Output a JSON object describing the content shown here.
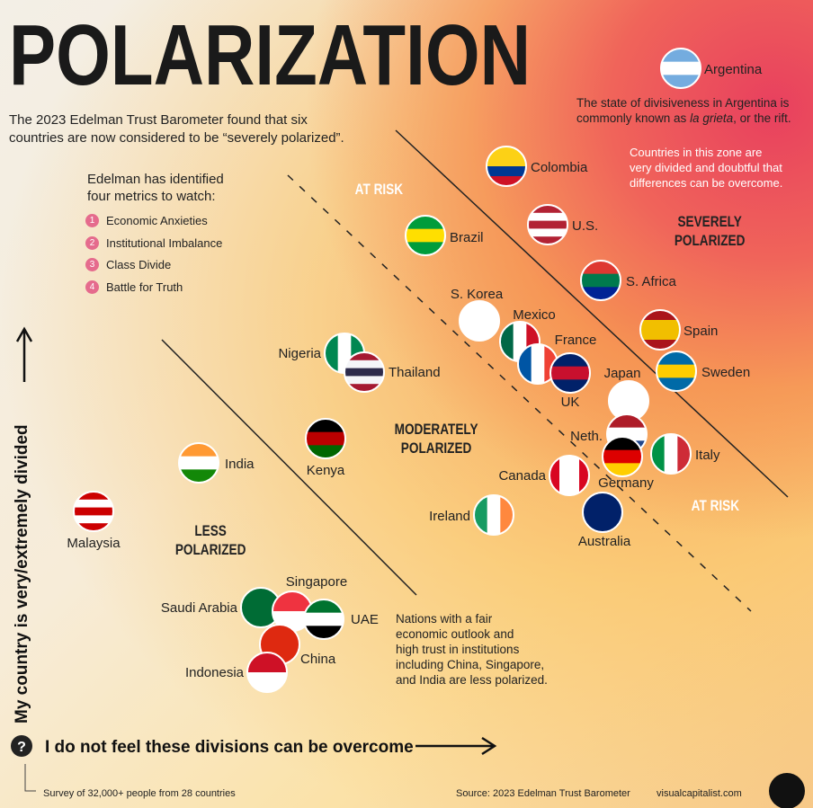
{
  "header": {
    "title": "POLARIZATION",
    "intro": [
      "The 2023 Edelman Trust Barometer found that six",
      "countries are now considered to be “severely polarized”."
    ]
  },
  "metrics": {
    "heading": [
      "Edelman has identified",
      "four metrics to watch:"
    ],
    "items": [
      {
        "number": "1",
        "label": "Economic Anxieties"
      },
      {
        "number": "2",
        "label": "Institutional Imbalance"
      },
      {
        "number": "3",
        "label": "Class Divide"
      },
      {
        "number": "4",
        "label": "Battle for Truth"
      }
    ]
  },
  "zones": {
    "at_risk_top": "AT RISK",
    "severely": [
      "SEVERELY",
      "POLARIZED"
    ],
    "moderately": [
      "MODERATELY",
      "POLARIZED"
    ],
    "less": [
      "LESS",
      "POLARIZED"
    ],
    "at_risk_bottom": "AT RISK"
  },
  "notes": {
    "argentina": [
      "The state of divisiveness in Argentina is",
      "commonly known as ",
      "la grieta",
      ", or the rift."
    ],
    "severe_zone": [
      "Countries in this zone are",
      "very divided and doubtful that",
      "differences can be overcome."
    ],
    "less_zone": [
      "Nations with a fair",
      "economic outlook and",
      "high trust in institutions",
      "including China, Singapore,",
      "and India are less polarized."
    ]
  },
  "countries": [
    "Argentina",
    "Colombia",
    "U.S.",
    "Brazil",
    "S. Africa",
    "S. Korea",
    "Mexico",
    "France",
    "UK",
    "Spain",
    "Sweden",
    "Japan",
    "Nigeria",
    "Thailand",
    "Neth.",
    "Germany",
    "Italy",
    "Kenya",
    "India",
    "Canada",
    "Ireland",
    "Australia",
    "Malaysia",
    "Saudi Arabia",
    "Singapore",
    "UAE",
    "China",
    "Indonesia"
  ],
  "axes": {
    "y": "My country is very/extremely divided",
    "x_icon": "?",
    "x": "I do not feel these divisions can be overcome"
  },
  "footer": {
    "survey": "Survey of 32,000+ people from 28 countries",
    "source": "Source: 2023 Edelman Trust Barometer",
    "site": "visualcapitalist.com"
  }
}
